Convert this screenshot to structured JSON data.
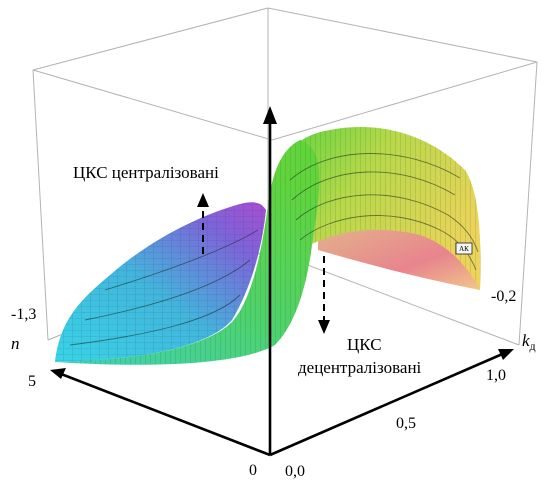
{
  "labels": {
    "centralized": "ЦКС централізовані",
    "decentralized_line1": "ЦКС",
    "decentralized_line2": "децентралізовані",
    "marker": "АК"
  },
  "axes": {
    "kd": {
      "name_main": "k",
      "name_sub": "д",
      "ticks": [
        "0,0",
        "0,5",
        "1,0"
      ]
    },
    "n": {
      "name": "n",
      "ticks": [
        "5",
        "0"
      ]
    },
    "vertical": {
      "ticks": [
        "-1,3",
        "-0,2"
      ]
    }
  },
  "colors": {
    "box": "#b3b3b3",
    "axis": "#000000",
    "surface_low": "#3ad6d8",
    "surface_mid": "#4fd85a",
    "surface_high": "#e9d95a",
    "surface_left_far": "#9b4bd8",
    "surface_right_far": "#e8737a"
  }
}
